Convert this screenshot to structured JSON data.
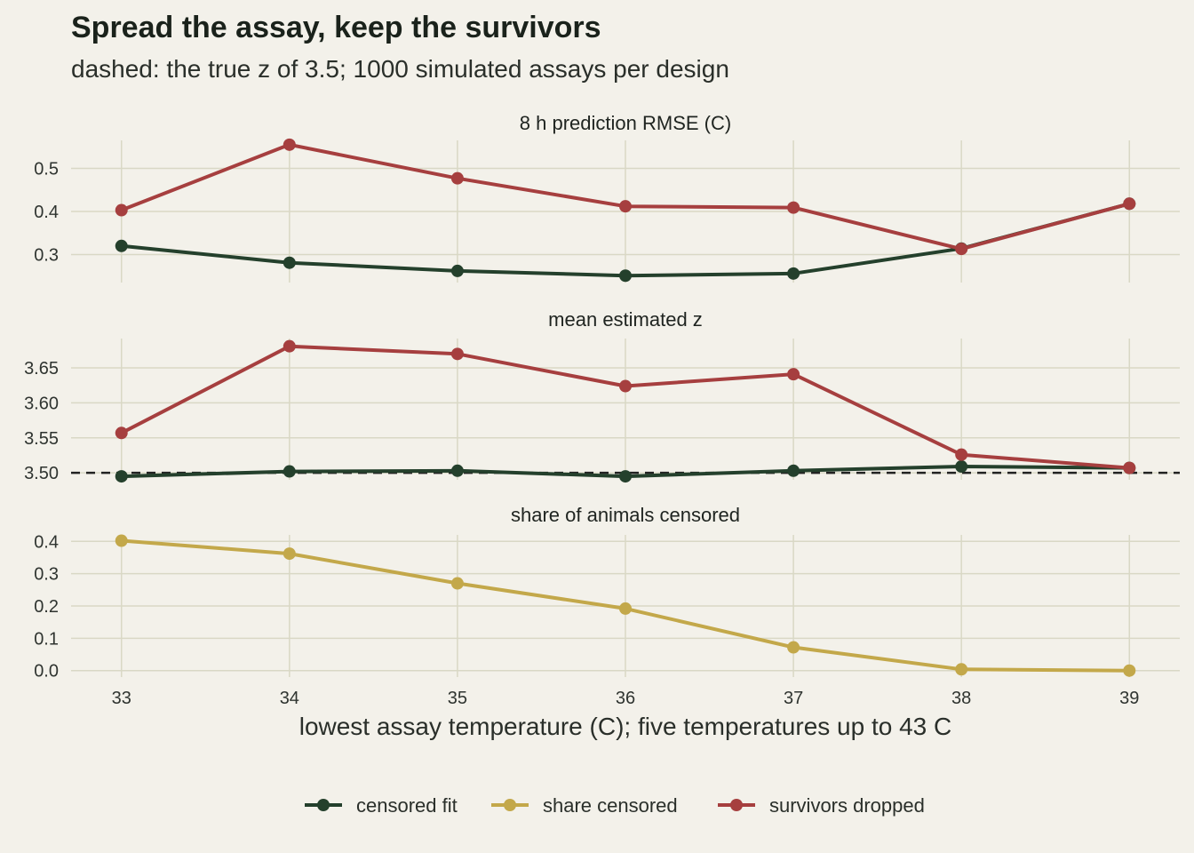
{
  "title": "Spread the assay, keep the survivors",
  "subtitle": "dashed: the true z of 3.5; 1000 simulated assays per design",
  "colors": {
    "censored_fit": "#24402c",
    "share_censored": "#c3a84a",
    "survivors_dropped": "#a63f3f",
    "reference": "#222222"
  },
  "chart_data": {
    "type": "line",
    "xlabel": "lowest assay temperature (C); five temperatures up to 43 C",
    "x": [
      33,
      34,
      35,
      36,
      37,
      38,
      39
    ],
    "x_tick_labels": [
      "33",
      "34",
      "35",
      "36",
      "37",
      "38",
      "39"
    ],
    "xlim": [
      32.7,
      39.3
    ],
    "legend_position": "bottom",
    "legend": [
      {
        "key": "censored_fit",
        "label": "censored fit"
      },
      {
        "key": "share_censored",
        "label": "share censored"
      },
      {
        "key": "survivors_dropped",
        "label": "survivors dropped"
      }
    ],
    "panels": [
      {
        "title": "8 h prediction RMSE (C)",
        "ylim": [
          0.235,
          0.565
        ],
        "y_ticks": [
          0.3,
          0.4,
          0.5
        ],
        "y_tick_labels": [
          "0.3",
          "0.4",
          "0.5"
        ],
        "series": [
          {
            "key": "censored_fit",
            "values": [
              0.32,
              0.281,
              0.262,
              0.251,
              0.256,
              0.314,
              0.418
            ]
          },
          {
            "key": "survivors_dropped",
            "values": [
              0.403,
              0.555,
              0.477,
              0.412,
              0.409,
              0.313,
              0.418
            ]
          }
        ]
      },
      {
        "title": "mean estimated z",
        "ylim": [
          3.49,
          3.692
        ],
        "y_ticks": [
          3.5,
          3.55,
          3.6,
          3.65
        ],
        "y_tick_labels": [
          "3.50",
          "3.55",
          "3.60",
          "3.65"
        ],
        "reference_line": 3.5,
        "series": [
          {
            "key": "censored_fit",
            "values": [
              3.495,
              3.502,
              3.503,
              3.495,
              3.503,
              3.509,
              3.507
            ]
          },
          {
            "key": "survivors_dropped",
            "values": [
              3.557,
              3.681,
              3.67,
              3.624,
              3.641,
              3.526,
              3.507
            ]
          }
        ]
      },
      {
        "title": "share of animals censored",
        "ylim": [
          -0.02,
          0.42
        ],
        "y_ticks": [
          0.0,
          0.1,
          0.2,
          0.3,
          0.4
        ],
        "y_tick_labels": [
          "0.0",
          "0.1",
          "0.2",
          "0.3",
          "0.4"
        ],
        "series": [
          {
            "key": "share_censored",
            "values": [
              0.402,
              0.362,
              0.27,
              0.192,
              0.072,
              0.004,
              0.0
            ]
          }
        ]
      }
    ]
  }
}
